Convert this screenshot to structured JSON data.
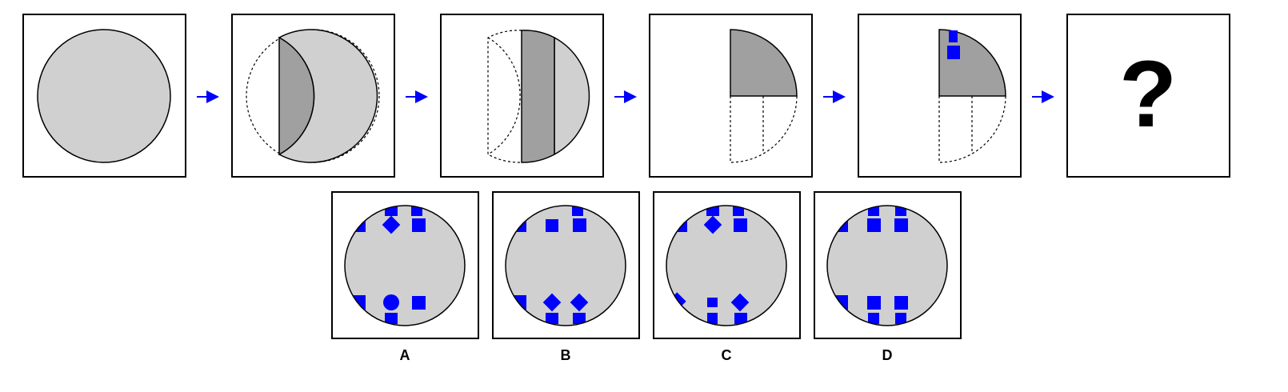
{
  "sequence": {
    "final_symbol": "?"
  },
  "options": [
    {
      "label": "A"
    },
    {
      "label": "B"
    },
    {
      "label": "C"
    },
    {
      "label": "D"
    }
  ],
  "colors": {
    "paper": "#d0d0d0",
    "fold": "#a0a0a0",
    "hole": "#0000ff",
    "arrow": "#0000ff",
    "frame": "#000000"
  }
}
